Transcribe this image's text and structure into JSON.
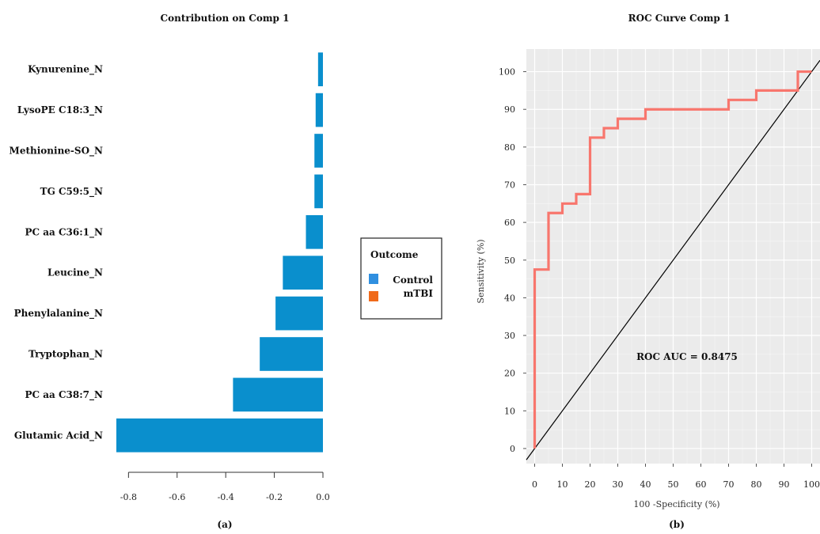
{
  "chart_data": [
    {
      "type": "bar",
      "orientation": "horizontal",
      "title": "Contribution on Comp 1",
      "caption": "(a)",
      "categories": [
        "Kynurenine_N",
        "LysoPE C18:3_N",
        "Methionine-SO_N",
        "TG C59:5_N",
        "PC aa C36:1_N",
        "Leucine_N",
        "Phenylalanine_N",
        "Tryptophan_N",
        "PC aa C38:7_N",
        "Glutamic Acid_N"
      ],
      "values": [
        -0.02,
        -0.03,
        -0.035,
        -0.035,
        -0.07,
        -0.165,
        -0.195,
        -0.26,
        -0.37,
        -0.85
      ],
      "xlim": [
        -0.85,
        0.0
      ],
      "xticks": [
        "-0.8",
        "-0.6",
        "-0.4",
        "-0.2",
        "0.0"
      ],
      "bar_color": "#0a8fcd",
      "legend": {
        "title": "Outcome",
        "placement": "right",
        "items": [
          {
            "label": "Control",
            "color": "#2f8fe0"
          },
          {
            "label": "mTBI",
            "color": "#f06a1a"
          }
        ]
      }
    },
    {
      "type": "line",
      "title": "ROC Curve Comp 1",
      "caption": "(b)",
      "xlabel": "100 -Specificity (%)",
      "ylabel": "Sensitivity (%)",
      "xlim": [
        -3,
        103
      ],
      "ylim": [
        -4,
        106
      ],
      "xticks": [
        "0",
        "10",
        "20",
        "30",
        "40",
        "50",
        "60",
        "70",
        "80",
        "90",
        "100"
      ],
      "yticks": [
        "0",
        "10",
        "20",
        "30",
        "40",
        "50",
        "60",
        "70",
        "80",
        "90",
        "100"
      ],
      "grid": true,
      "annotation": "ROC AUC = 0.8475",
      "series": [
        {
          "color": "#f8766d",
          "x": [
            0,
            0,
            5,
            5,
            10,
            10,
            15,
            15,
            20,
            20,
            25,
            25,
            30,
            30,
            40,
            40,
            70,
            70,
            80,
            80,
            95,
            95,
            100
          ],
          "y": [
            0,
            47.5,
            47.5,
            62.5,
            62.5,
            65,
            65,
            67.5,
            67.5,
            82.5,
            82.5,
            85,
            85,
            87.5,
            87.5,
            90,
            90,
            92.5,
            92.5,
            95,
            95,
            100,
            100
          ]
        },
        {
          "color": "#000000",
          "x": [
            -3,
            103
          ],
          "y": [
            -3,
            103
          ]
        }
      ]
    }
  ]
}
